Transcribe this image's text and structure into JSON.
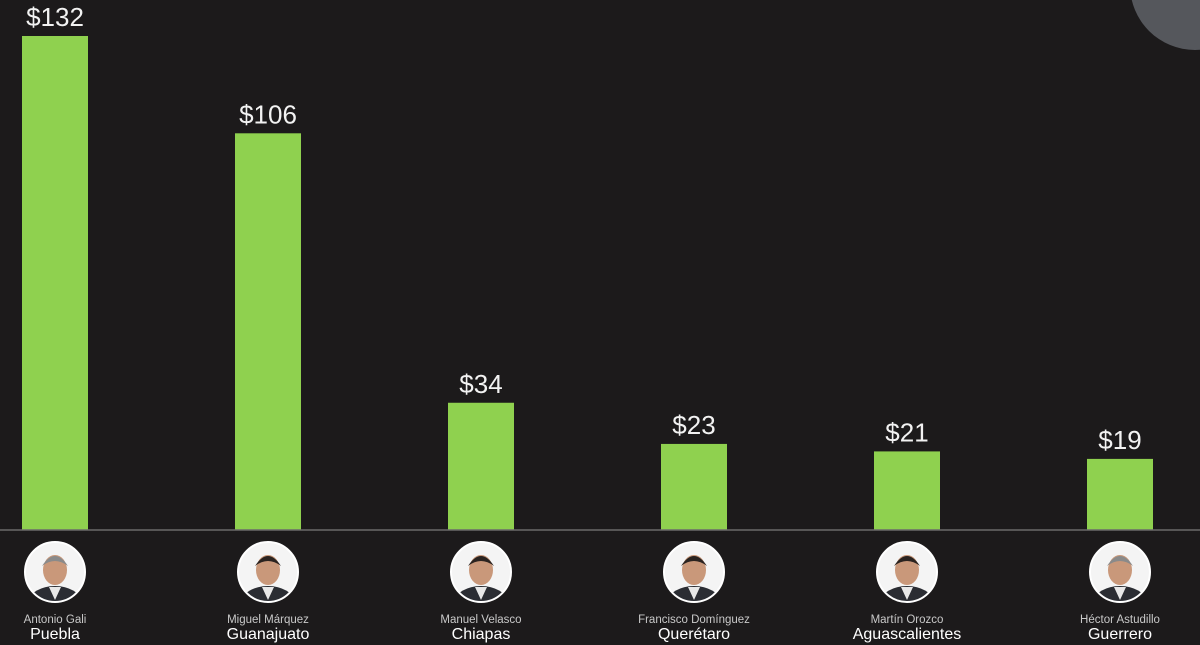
{
  "chart_data": {
    "type": "bar",
    "title": "",
    "xlabel": "",
    "ylabel": "",
    "ylim": [
      0,
      132
    ],
    "grid": false,
    "bar_color": "#8fd14f",
    "axis_color": "#6b6b6b",
    "categories": [
      "Puebla",
      "Guanajuato",
      "Chiapas",
      "Querétaro",
      "Aguascalientes",
      "Guerrero"
    ],
    "people": [
      "Antonio Gali",
      "Miguel Márquez",
      "Manuel Velasco",
      "Francisco Domínguez",
      "Martín Orozco",
      "Héctor Astudillo"
    ],
    "values": [
      132,
      106,
      34,
      23,
      21,
      19
    ],
    "value_labels": [
      "$132",
      "$106",
      "$34",
      "$23",
      "$21",
      "$19"
    ]
  }
}
